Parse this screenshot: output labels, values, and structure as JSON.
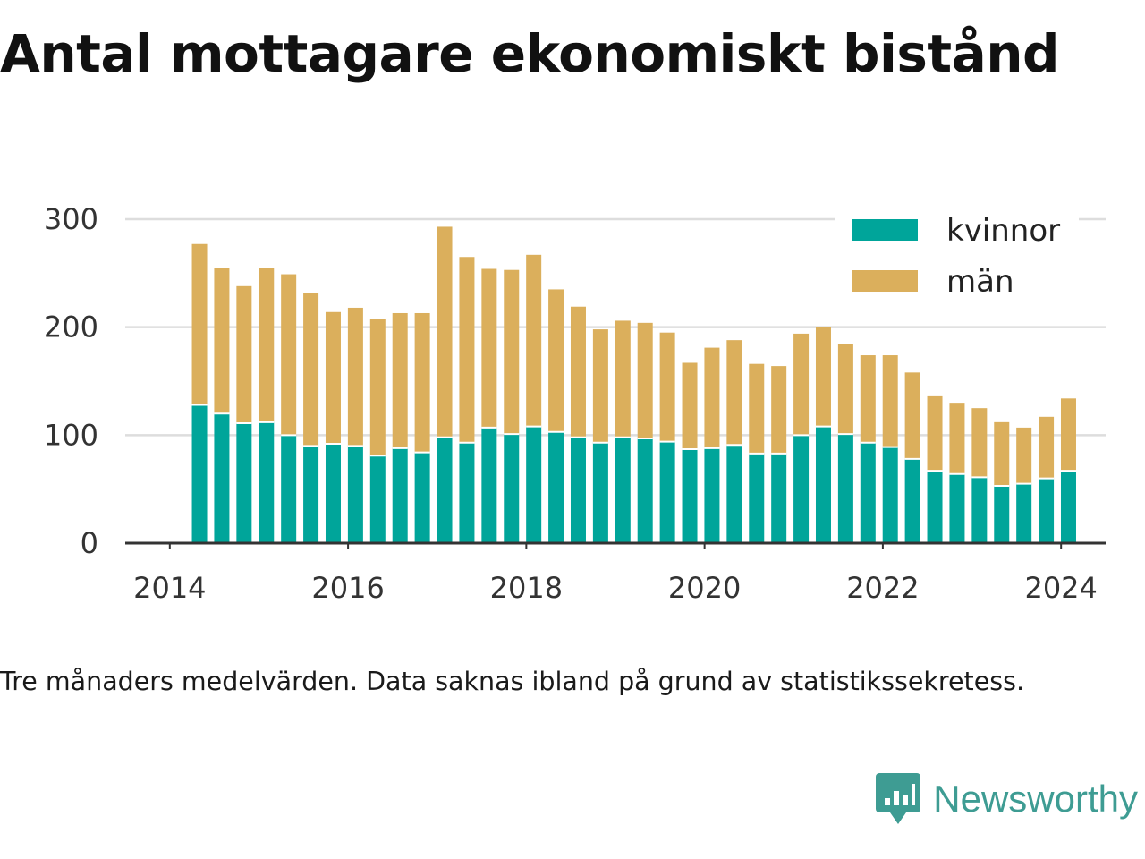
{
  "title": "Antal mottagare ekonomiskt bistånd",
  "note": "Tre månaders medelvärden. Data saknas ibland på grund av statistikssekretess.",
  "brand": {
    "name": "Newsworthy",
    "icon": "newsworthy-chart-bubble-icon"
  },
  "colors": {
    "kvinnor": "#00a59a",
    "man": "#dbaf5c",
    "grid": "#dddddd",
    "axis": "#333333",
    "brand": "#3e9c93"
  },
  "chart_data": {
    "type": "bar",
    "stacked": true,
    "x_ticks": [
      "2014",
      "2016",
      "2018",
      "2020",
      "2022",
      "2024"
    ],
    "y_ticks": [
      "0",
      "100",
      "200",
      "300"
    ],
    "ylim": [
      0,
      300
    ],
    "xlim": [
      "2013-07",
      "2024-07"
    ],
    "grid": true,
    "legend_position": "top-right",
    "categories": [
      "2014-05",
      "2014-08",
      "2014-11",
      "2015-02",
      "2015-05",
      "2015-08",
      "2015-11",
      "2016-02",
      "2016-05",
      "2016-08",
      "2016-11",
      "2017-02",
      "2017-05",
      "2017-08",
      "2017-11",
      "2018-02",
      "2018-05",
      "2018-08",
      "2018-11",
      "2019-02",
      "2019-05",
      "2019-08",
      "2019-11",
      "2020-02",
      "2020-05",
      "2020-08",
      "2020-11",
      "2021-02",
      "2021-05",
      "2021-08",
      "2021-11",
      "2022-02",
      "2022-05",
      "2022-08",
      "2022-11",
      "2023-02",
      "2023-05",
      "2023-08",
      "2023-11",
      "2024-02"
    ],
    "series": [
      {
        "name": "kvinnor",
        "color": "#00a59a",
        "values": [
          128,
          120,
          111,
          112,
          100,
          90,
          92,
          90,
          81,
          88,
          84,
          98,
          93,
          107,
          101,
          108,
          103,
          98,
          93,
          98,
          97,
          94,
          87,
          88,
          91,
          83,
          83,
          100,
          108,
          101,
          93,
          89,
          78,
          67,
          64,
          61,
          53,
          55,
          60,
          67
        ]
      },
      {
        "name": "män",
        "color": "#dbaf5c",
        "values": [
          149,
          135,
          127,
          143,
          149,
          142,
          122,
          128,
          127,
          125,
          129,
          195,
          172,
          147,
          152,
          159,
          132,
          121,
          105,
          108,
          107,
          101,
          80,
          93,
          97,
          83,
          81,
          94,
          92,
          83,
          81,
          85,
          80,
          69,
          66,
          64,
          59,
          52,
          57,
          67
        ]
      }
    ]
  }
}
